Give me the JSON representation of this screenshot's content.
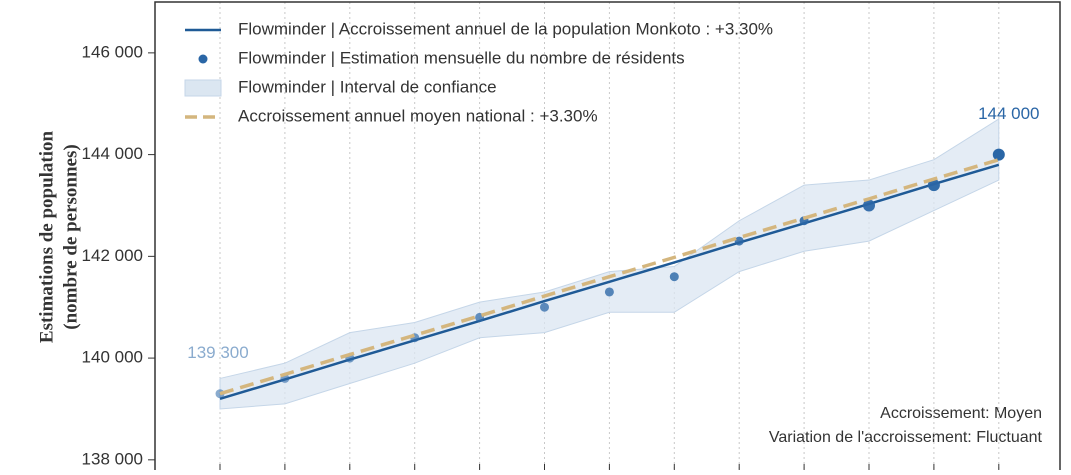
{
  "chart_data": {
    "type": "line",
    "ylabel": [
      "Estimations de population",
      "(nombre de personnes)"
    ],
    "categories": [
      null,
      null,
      null,
      null,
      null,
      null,
      null,
      null,
      null,
      null,
      null,
      null,
      null
    ],
    "ylim": [
      137800,
      147000
    ],
    "yticks": [
      {
        "value": 138000,
        "label": "138 000"
      },
      {
        "value": 140000,
        "label": "140 000"
      },
      {
        "value": 142000,
        "label": "142 000"
      },
      {
        "value": 144000,
        "label": "144 000"
      },
      {
        "value": 146000,
        "label": "146 000"
      }
    ],
    "grid": true,
    "legend": "upper left",
    "series": [
      {
        "name": "Flowminder | Accroissement annuel de la population Monkoto : +3.30%",
        "type": "line",
        "style": "solid",
        "color": "#1f5a96",
        "values": [
          139200,
          139580,
          139970,
          140350,
          140730,
          141120,
          141500,
          141880,
          142270,
          142650,
          143030,
          143420,
          143800
        ]
      },
      {
        "name": "Flowminder | Estimation mensuelle du nombre de résidents",
        "type": "scatter",
        "color": "#2a66a6",
        "values": [
          139300,
          139600,
          140000,
          140400,
          140800,
          141000,
          141300,
          141600,
          142300,
          142700,
          143000,
          143400,
          144000
        ],
        "value_labels": [
          "139 300",
          null,
          null,
          null,
          null,
          null,
          null,
          null,
          null,
          null,
          null,
          null,
          "144 000"
        ]
      },
      {
        "name": "Flowminder | Interval de confiance",
        "type": "band",
        "color": "#dbe6f1",
        "lower": [
          139000,
          139100,
          139500,
          139900,
          140400,
          140500,
          140900,
          140900,
          141700,
          142100,
          142300,
          142900,
          143500
        ],
        "upper": [
          139600,
          139900,
          140500,
          140700,
          141100,
          141300,
          141700,
          141800,
          142700,
          143400,
          143500,
          143900,
          144700
        ]
      },
      {
        "name": "Accroissement annuel moyen national : +3.30%",
        "type": "line",
        "style": "dashed",
        "color": "#d4b67e",
        "values": [
          139300,
          139680,
          140070,
          140450,
          140830,
          141220,
          141600,
          141980,
          142370,
          142750,
          143130,
          143520,
          143900
        ]
      }
    ],
    "annotations": [
      "Accroissement: Moyen",
      "Variation de l'accroissement: Fluctuant"
    ]
  }
}
